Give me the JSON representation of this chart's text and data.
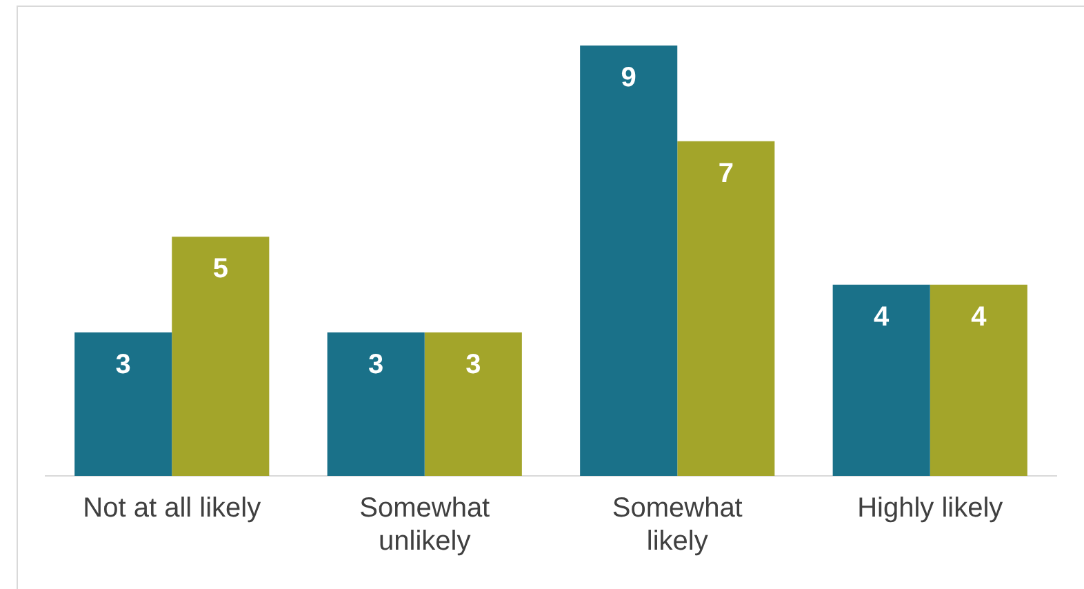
{
  "chart_data": {
    "type": "bar",
    "categories": [
      "Not at all likely",
      "Somewhat unlikely",
      "Somewhat likely",
      "Highly likely"
    ],
    "series": [
      {
        "color": "#1a7189",
        "values": [
          3,
          3,
          9,
          4
        ]
      },
      {
        "color": "#a3a52a",
        "values": [
          5,
          3,
          7,
          4
        ]
      }
    ],
    "tick_labels": "x",
    "data_labels": true,
    "grid": false,
    "legend": false
  }
}
